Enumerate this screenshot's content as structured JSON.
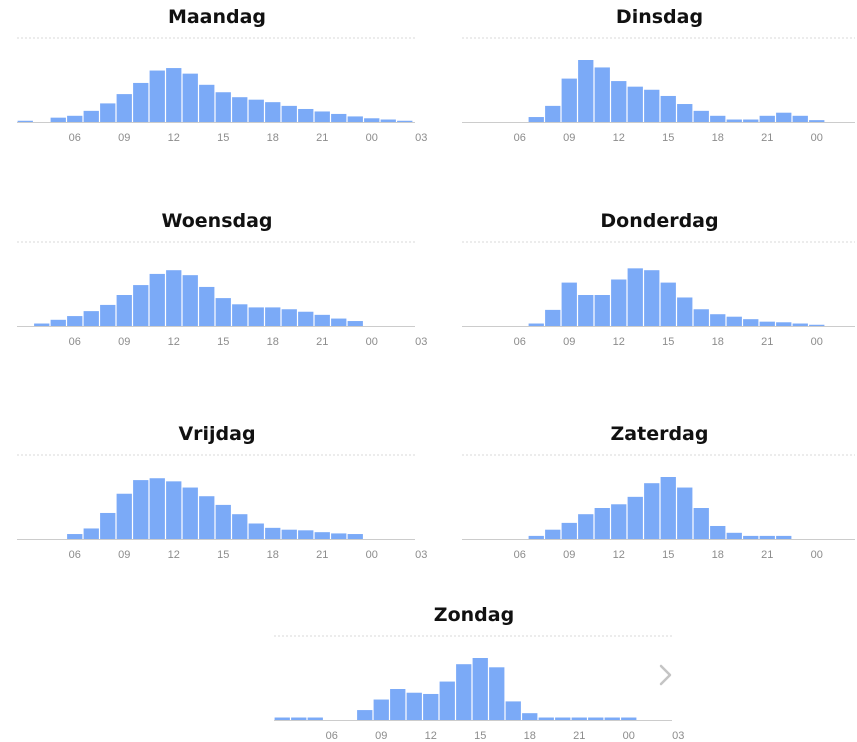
{
  "chart_data": [
    {
      "type": "bar",
      "title": "Maandag",
      "categories": [
        "03",
        "04",
        "05",
        "06",
        "07",
        "08",
        "09",
        "10",
        "11",
        "12",
        "13",
        "14",
        "15",
        "16",
        "17",
        "18",
        "19",
        "20",
        "21",
        "22",
        "23",
        "00",
        "01",
        "02",
        "03"
      ],
      "tick_labels": [
        "06",
        "09",
        "12",
        "15",
        "18",
        "21",
        "00",
        "03"
      ],
      "values": [
        2,
        0,
        7,
        10,
        18,
        30,
        45,
        63,
        83,
        87,
        78,
        60,
        48,
        40,
        36,
        32,
        26,
        21,
        17,
        13,
        9,
        6,
        4,
        2,
        0
      ],
      "ylim": [
        0,
        100
      ],
      "color": "#7baaf7"
    },
    {
      "type": "bar",
      "title": "Dinsdag",
      "categories": [
        "03",
        "04",
        "05",
        "06",
        "07",
        "08",
        "09",
        "10",
        "11",
        "12",
        "13",
        "14",
        "15",
        "16",
        "17",
        "18",
        "19",
        "20",
        "21",
        "22",
        "23",
        "00",
        "01",
        "02",
        "03"
      ],
      "tick_labels": [
        "06",
        "09",
        "12",
        "15",
        "18",
        "21",
        "00",
        "03"
      ],
      "values": [
        0,
        0,
        0,
        0,
        8,
        26,
        70,
        100,
        88,
        66,
        57,
        52,
        42,
        29,
        18,
        10,
        4,
        4,
        10,
        15,
        10,
        3,
        0,
        0,
        0
      ],
      "ylim": [
        0,
        100
      ],
      "color": "#7baaf7"
    },
    {
      "type": "bar",
      "title": "Woensdag",
      "categories": [
        "03",
        "04",
        "05",
        "06",
        "07",
        "08",
        "09",
        "10",
        "11",
        "12",
        "13",
        "14",
        "15",
        "16",
        "17",
        "18",
        "19",
        "20",
        "21",
        "22",
        "23",
        "00",
        "01",
        "02",
        "03"
      ],
      "tick_labels": [
        "06",
        "09",
        "12",
        "15",
        "18",
        "21",
        "00",
        "03"
      ],
      "values": [
        0,
        4,
        10,
        16,
        24,
        34,
        50,
        66,
        84,
        90,
        82,
        63,
        45,
        35,
        30,
        30,
        27,
        23,
        18,
        12,
        8,
        0,
        0,
        0,
        0
      ],
      "ylim": [
        0,
        100
      ],
      "color": "#7baaf7"
    },
    {
      "type": "bar",
      "title": "Donderdag",
      "categories": [
        "03",
        "04",
        "05",
        "06",
        "07",
        "08",
        "09",
        "10",
        "11",
        "12",
        "13",
        "14",
        "15",
        "16",
        "17",
        "18",
        "19",
        "20",
        "21",
        "22",
        "23",
        "00",
        "01",
        "02",
        "03"
      ],
      "tick_labels": [
        "06",
        "09",
        "12",
        "15",
        "18",
        "21",
        "00",
        "03"
      ],
      "values": [
        0,
        0,
        0,
        0,
        4,
        26,
        70,
        50,
        50,
        75,
        93,
        90,
        70,
        46,
        27,
        19,
        15,
        11,
        7,
        6,
        4,
        2,
        0,
        0,
        0
      ],
      "ylim": [
        0,
        100
      ],
      "color": "#7baaf7"
    },
    {
      "type": "bar",
      "title": "Vrijdag",
      "categories": [
        "03",
        "04",
        "05",
        "06",
        "07",
        "08",
        "09",
        "10",
        "11",
        "12",
        "13",
        "14",
        "15",
        "16",
        "17",
        "18",
        "19",
        "20",
        "21",
        "22",
        "23",
        "00",
        "01",
        "02",
        "03"
      ],
      "tick_labels": [
        "06",
        "09",
        "12",
        "15",
        "18",
        "21",
        "00",
        "03"
      ],
      "values": [
        0,
        0,
        0,
        8,
        17,
        42,
        73,
        95,
        98,
        93,
        83,
        69,
        55,
        40,
        25,
        18,
        15,
        14,
        11,
        9,
        8,
        0,
        0,
        0,
        0
      ],
      "ylim": [
        0,
        100
      ],
      "color": "#7baaf7"
    },
    {
      "type": "bar",
      "title": "Zaterdag",
      "categories": [
        "03",
        "04",
        "05",
        "06",
        "07",
        "08",
        "09",
        "10",
        "11",
        "12",
        "13",
        "14",
        "15",
        "16",
        "17",
        "18",
        "19",
        "20",
        "21",
        "22",
        "23",
        "00",
        "01",
        "02",
        "03"
      ],
      "tick_labels": [
        "06",
        "09",
        "12",
        "15",
        "18",
        "21",
        "00",
        "03"
      ],
      "values": [
        0,
        0,
        0,
        0,
        5,
        15,
        26,
        40,
        50,
        56,
        68,
        90,
        100,
        83,
        50,
        21,
        10,
        5,
        5,
        5,
        0,
        0,
        0,
        0,
        0
      ],
      "ylim": [
        0,
        100
      ],
      "color": "#7baaf7"
    },
    {
      "type": "bar",
      "title": "Zondag",
      "categories": [
        "03",
        "04",
        "05",
        "06",
        "07",
        "08",
        "09",
        "10",
        "11",
        "12",
        "13",
        "14",
        "15",
        "16",
        "17",
        "18",
        "19",
        "20",
        "21",
        "22",
        "23",
        "00",
        "01",
        "02",
        "03"
      ],
      "tick_labels": [
        "06",
        "09",
        "12",
        "15",
        "18",
        "21",
        "00",
        "03"
      ],
      "values": [
        4,
        4,
        4,
        0,
        0,
        16,
        33,
        50,
        44,
        42,
        62,
        90,
        100,
        85,
        30,
        11,
        4,
        4,
        4,
        4,
        4,
        4,
        0,
        0,
        0
      ],
      "ylim": [
        0,
        100
      ],
      "color": "#7baaf7"
    }
  ],
  "navigation": {
    "next_icon": "chevron-right-icon",
    "next_glyph": "›"
  }
}
